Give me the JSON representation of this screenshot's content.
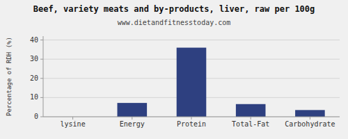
{
  "chart_data": {
    "type": "bar",
    "title": "Beef, variety meats and by-products, liver, raw per 100g",
    "subtitle": "www.dietandfitnesstoday.com",
    "categories": [
      "lysine",
      "Energy",
      "Protein",
      "Total-Fat",
      "Carbohydrate"
    ],
    "values": [
      0,
      7.2,
      36.0,
      6.6,
      3.5
    ],
    "color": "#2e4080",
    "ylabel": "Percentage of RDH (%)",
    "ylim": [
      0,
      42
    ],
    "yticks": [
      0,
      10,
      20,
      30,
      40
    ],
    "grid": true
  }
}
